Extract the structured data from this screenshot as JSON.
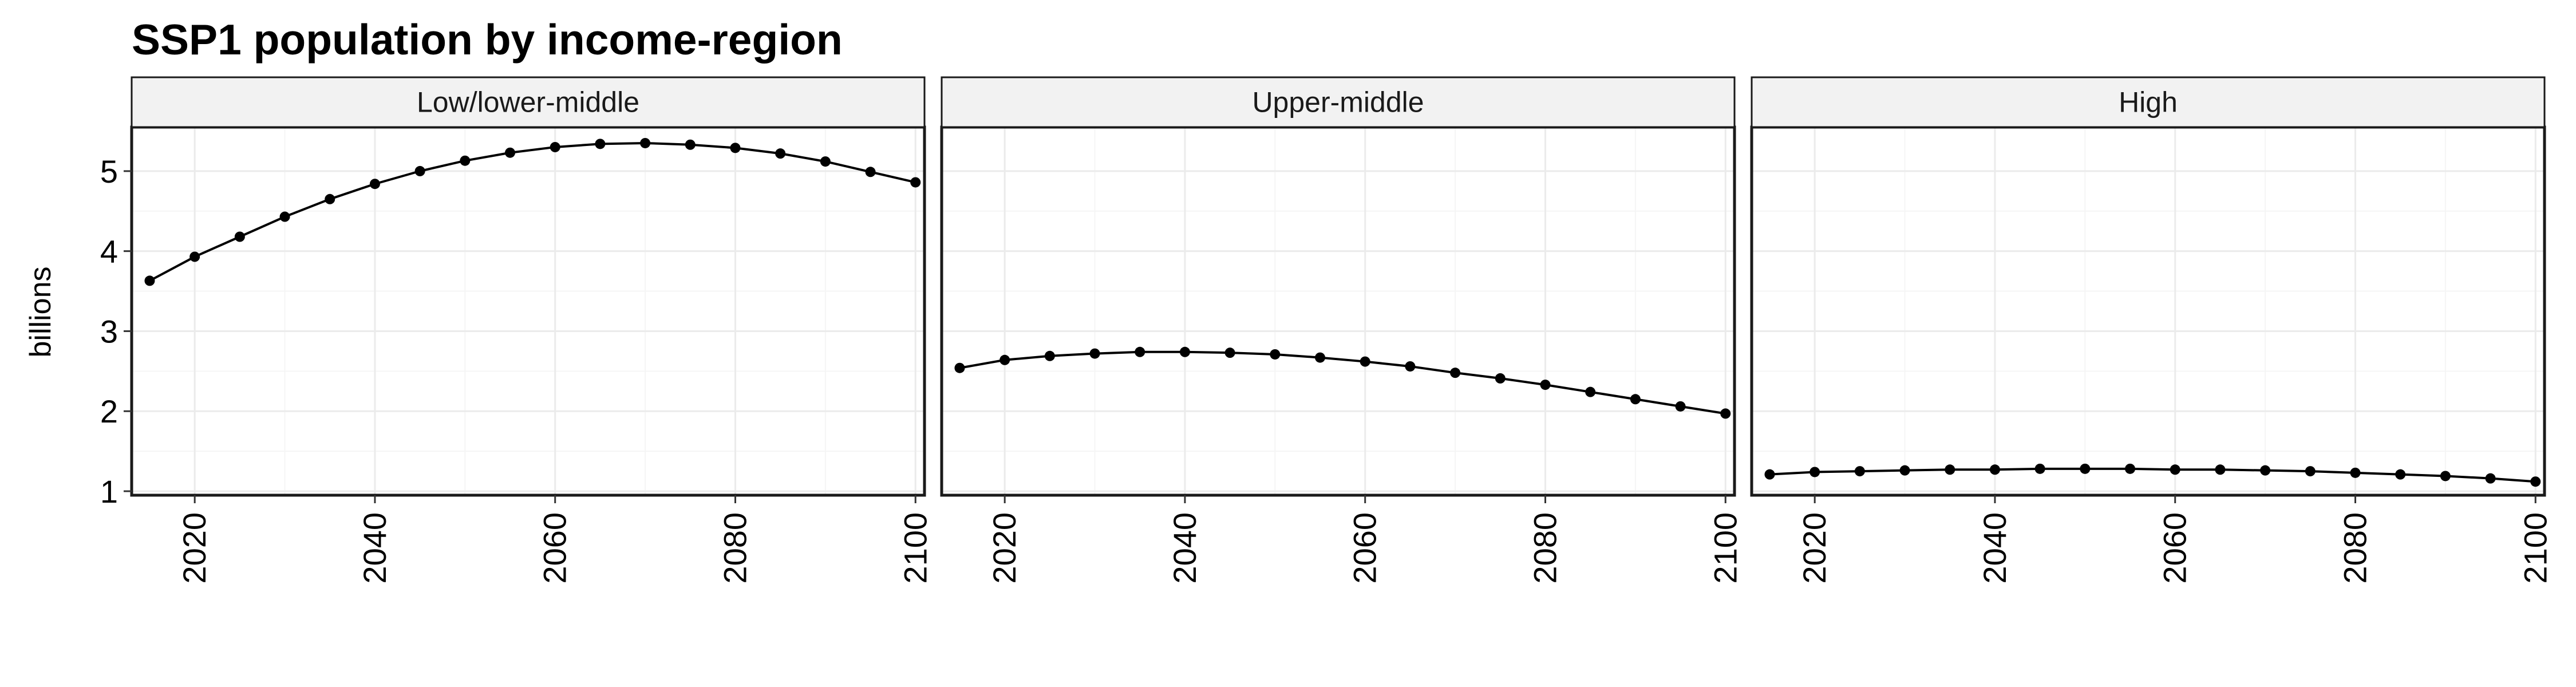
{
  "chart_data": {
    "type": "line",
    "title": "SSP1 population by income-region",
    "ylabel": "billions",
    "xlabel": "",
    "x": [
      2015,
      2020,
      2025,
      2030,
      2035,
      2040,
      2045,
      2050,
      2055,
      2060,
      2065,
      2070,
      2075,
      2080,
      2085,
      2090,
      2095,
      2100
    ],
    "xlim": [
      2013,
      2101
    ],
    "ylim": [
      0.95,
      5.55
    ],
    "x_ticks": [
      "2020",
      "2040",
      "2060",
      "2080",
      "2100"
    ],
    "y_ticks": [
      "1",
      "2",
      "3",
      "4",
      "5"
    ],
    "grid": true,
    "panels": [
      {
        "name": "Low/lower-middle",
        "values": [
          3.63,
          3.93,
          4.18,
          4.43,
          4.65,
          4.84,
          5.0,
          5.13,
          5.23,
          5.3,
          5.34,
          5.35,
          5.33,
          5.29,
          5.22,
          5.12,
          4.99,
          4.86
        ]
      },
      {
        "name": "Upper-middle",
        "values": [
          2.54,
          2.64,
          2.69,
          2.72,
          2.74,
          2.74,
          2.73,
          2.71,
          2.67,
          2.62,
          2.56,
          2.48,
          2.41,
          2.33,
          2.24,
          2.15,
          2.06,
          1.97
        ]
      },
      {
        "name": "High",
        "values": [
          1.21,
          1.24,
          1.25,
          1.26,
          1.27,
          1.27,
          1.28,
          1.28,
          1.28,
          1.27,
          1.27,
          1.26,
          1.25,
          1.23,
          1.21,
          1.19,
          1.16,
          1.12
        ]
      }
    ]
  },
  "colors": {
    "line": "#000000",
    "strip_fill": "#f2f2f2",
    "grid_major": "#ebebeb",
    "grid_minor": "#f5f5f5"
  }
}
